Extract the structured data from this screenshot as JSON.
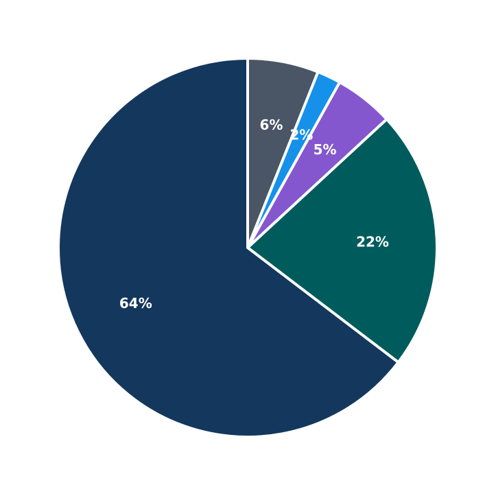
{
  "chart_data": {
    "type": "pie",
    "title": "",
    "start_angle": "12 o'clock",
    "direction": "clockwise",
    "legend": "none",
    "slices": [
      {
        "label": "6%",
        "value": 6,
        "color": "#4a5565"
      },
      {
        "label": "2%",
        "value": 2,
        "color": "#1591ea"
      },
      {
        "label": "5%",
        "value": 5,
        "color": "#8457cf"
      },
      {
        "label": "22%",
        "value": 22,
        "color": "#005c5c"
      },
      {
        "label": "64%",
        "value": 64,
        "color": "#14375e"
      }
    ],
    "categories": [
      "6%",
      "2%",
      "5%",
      "22%",
      "64%"
    ],
    "values": [
      6,
      2,
      5,
      22,
      64
    ]
  }
}
